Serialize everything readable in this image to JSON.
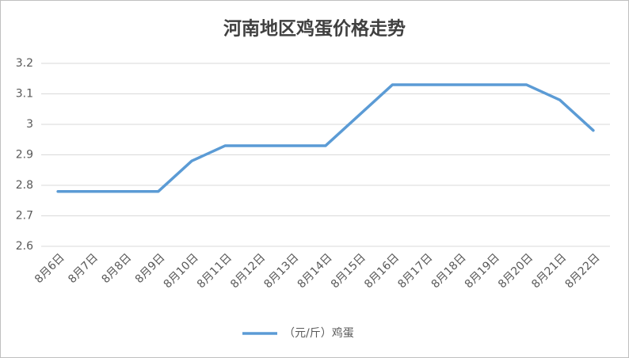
{
  "chart_data": {
    "type": "line",
    "title": "河南地区鸡蛋价格走势",
    "categories": [
      "8月6日",
      "8月7日",
      "8月8日",
      "8月9日",
      "8月10日",
      "8月11日",
      "8月12日",
      "8月13日",
      "8月14日",
      "8月15日",
      "8月16日",
      "8月17日",
      "8月18日",
      "8月19日",
      "8月20日",
      "8月21日",
      "8月22日"
    ],
    "series": [
      {
        "name": "（元/斤）鸡蛋",
        "color": "#5b9bd5",
        "values": [
          2.78,
          2.78,
          2.78,
          2.78,
          2.88,
          2.93,
          2.93,
          2.93,
          2.93,
          3.03,
          3.13,
          3.13,
          3.13,
          3.13,
          3.13,
          3.08,
          2.98
        ]
      }
    ],
    "ylim": [
      2.6,
      3.2
    ],
    "yticks": [
      2.6,
      2.7,
      2.8,
      2.9,
      3,
      3.1,
      3.2
    ],
    "grid": true,
    "legend": "bottom"
  }
}
